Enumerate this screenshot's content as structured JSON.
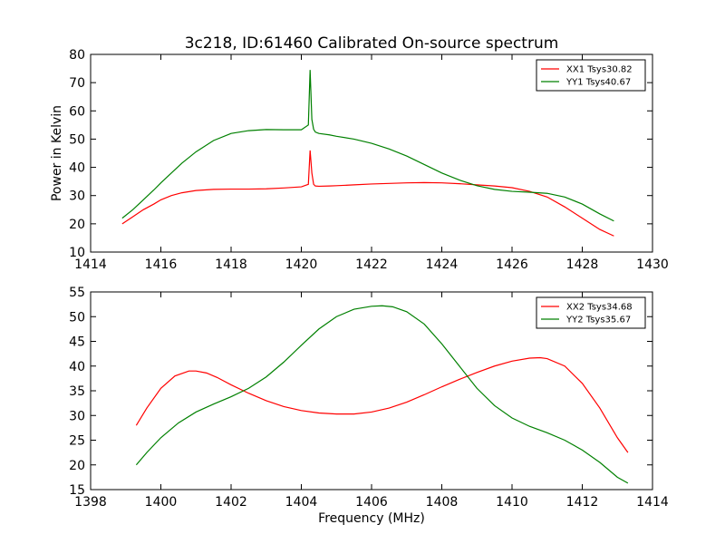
{
  "title": "3c218, ID:61460 Calibrated On-source spectrum",
  "chart_data": [
    {
      "type": "line",
      "xlabel": "",
      "ylabel": "Power in Kelvin",
      "xlim": [
        1414,
        1430
      ],
      "ylim": [
        10,
        80
      ],
      "xticks": [
        1414,
        1416,
        1418,
        1420,
        1422,
        1424,
        1426,
        1428,
        1430
      ],
      "yticks": [
        10,
        20,
        30,
        40,
        50,
        60,
        70,
        80
      ],
      "legend": "top-right",
      "grid": false,
      "series": [
        {
          "name": "XX1 Tsys30.82",
          "color": "#ff0000",
          "x": [
            1414.9,
            1415.2,
            1415.5,
            1415.8,
            1416.0,
            1416.3,
            1416.6,
            1417.0,
            1417.5,
            1418.0,
            1418.5,
            1419.0,
            1419.5,
            1420.0,
            1420.2,
            1420.25,
            1420.3,
            1420.35,
            1420.4,
            1420.5,
            1420.8,
            1421.0,
            1421.5,
            1422.0,
            1422.5,
            1423.0,
            1423.5,
            1424.0,
            1424.5,
            1425.0,
            1425.5,
            1426.0,
            1426.5,
            1427.0,
            1427.5,
            1428.0,
            1428.5,
            1428.9
          ],
          "y": [
            20.0,
            22.5,
            25.0,
            27.0,
            28.5,
            30.0,
            31.0,
            31.8,
            32.2,
            32.3,
            32.3,
            32.4,
            32.7,
            33.1,
            34.0,
            46.0,
            38.0,
            34.0,
            33.4,
            33.3,
            33.4,
            33.5,
            33.8,
            34.1,
            34.3,
            34.5,
            34.6,
            34.5,
            34.2,
            33.8,
            33.4,
            32.8,
            31.5,
            29.5,
            26.0,
            22.0,
            18.0,
            15.7
          ]
        },
        {
          "name": "YY1 Tsys40.67",
          "color": "#008000",
          "x": [
            1414.9,
            1415.2,
            1415.5,
            1415.8,
            1416.0,
            1416.3,
            1416.6,
            1417.0,
            1417.5,
            1418.0,
            1418.5,
            1419.0,
            1419.5,
            1420.0,
            1420.2,
            1420.25,
            1420.3,
            1420.35,
            1420.4,
            1420.5,
            1420.8,
            1421.0,
            1421.5,
            1422.0,
            1422.5,
            1423.0,
            1423.5,
            1424.0,
            1424.5,
            1425.0,
            1425.5,
            1426.0,
            1426.5,
            1427.0,
            1427.5,
            1428.0,
            1428.5,
            1428.9
          ],
          "y": [
            22.0,
            25.0,
            28.5,
            32.0,
            34.5,
            38.0,
            41.5,
            45.5,
            49.5,
            52.0,
            53.0,
            53.4,
            53.3,
            53.3,
            55.0,
            74.5,
            57.0,
            53.5,
            52.5,
            52.0,
            51.5,
            51.0,
            50.0,
            48.5,
            46.5,
            44.0,
            41.0,
            38.0,
            35.5,
            33.5,
            32.2,
            31.5,
            31.2,
            30.8,
            29.5,
            27.0,
            23.5,
            21.0
          ]
        }
      ]
    },
    {
      "type": "line",
      "xlabel": "Frequency (MHz)",
      "ylabel": "",
      "xlim": [
        1398,
        1414
      ],
      "ylim": [
        15,
        55
      ],
      "xticks": [
        1398,
        1400,
        1402,
        1404,
        1406,
        1408,
        1410,
        1412,
        1414
      ],
      "yticks": [
        15,
        20,
        25,
        30,
        35,
        40,
        45,
        50,
        55
      ],
      "legend": "top-right",
      "grid": false,
      "series": [
        {
          "name": "XX2 Tsys34.68",
          "color": "#ff0000",
          "x": [
            1399.3,
            1399.6,
            1400.0,
            1400.4,
            1400.8,
            1401.0,
            1401.3,
            1401.6,
            1402.0,
            1402.5,
            1403.0,
            1403.5,
            1404.0,
            1404.5,
            1405.0,
            1405.5,
            1406.0,
            1406.5,
            1407.0,
            1407.5,
            1408.0,
            1408.5,
            1409.0,
            1409.5,
            1410.0,
            1410.5,
            1410.8,
            1411.0,
            1411.5,
            1412.0,
            1412.5,
            1413.0,
            1413.3
          ],
          "y": [
            28.0,
            31.5,
            35.5,
            38.0,
            39.0,
            39.0,
            38.6,
            37.7,
            36.2,
            34.5,
            33.0,
            31.8,
            31.0,
            30.5,
            30.3,
            30.3,
            30.7,
            31.5,
            32.7,
            34.2,
            35.8,
            37.3,
            38.7,
            40.0,
            41.0,
            41.6,
            41.7,
            41.5,
            40.0,
            36.5,
            31.5,
            25.5,
            22.5
          ]
        },
        {
          "name": "YY2 Tsys35.67",
          "color": "#008000",
          "x": [
            1399.3,
            1399.6,
            1400.0,
            1400.5,
            1401.0,
            1401.5,
            1402.0,
            1402.5,
            1403.0,
            1403.5,
            1404.0,
            1404.5,
            1405.0,
            1405.5,
            1406.0,
            1406.3,
            1406.6,
            1407.0,
            1407.5,
            1408.0,
            1408.5,
            1409.0,
            1409.5,
            1410.0,
            1410.5,
            1411.0,
            1411.5,
            1412.0,
            1412.5,
            1413.0,
            1413.3
          ],
          "y": [
            20.0,
            22.5,
            25.5,
            28.5,
            30.7,
            32.3,
            33.8,
            35.5,
            37.8,
            40.8,
            44.2,
            47.5,
            50.0,
            51.5,
            52.1,
            52.2,
            52.0,
            51.0,
            48.5,
            44.5,
            40.0,
            35.5,
            32.0,
            29.5,
            27.8,
            26.5,
            25.0,
            23.0,
            20.5,
            17.5,
            16.3
          ]
        }
      ]
    }
  ]
}
